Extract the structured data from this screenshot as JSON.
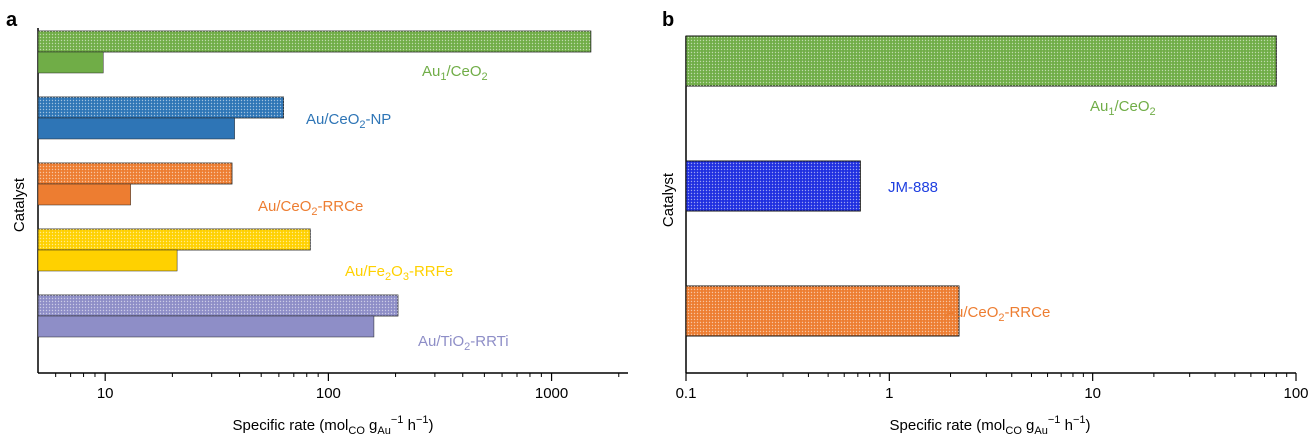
{
  "panels": {
    "a": {
      "letter": "a"
    },
    "b": {
      "letter": "b"
    }
  },
  "chart_data": [
    {
      "type": "bar",
      "orientation": "horizontal",
      "xscale": "log",
      "xlim": [
        5,
        2200
      ],
      "xticks": [
        10,
        100,
        1000
      ],
      "xtick_labels": [
        "10",
        "100",
        "1000"
      ],
      "xlabel": "Specific rate (mol",
      "ylabel": "Catalyst",
      "groups": [
        {
          "label": "Au",
          "sub": "1",
          "mid": "/CeO",
          "sub2": "2",
          "tail": "",
          "color": "#70AD47",
          "textColor": "#70AD47",
          "values": [
            1500,
            9.8
          ]
        },
        {
          "label": "Au/CeO",
          "sub": "2",
          "mid": "-NP",
          "sub2": "",
          "tail": "",
          "color": "#2E75B6",
          "textColor": "#2E75B6",
          "values": [
            63,
            38
          ]
        },
        {
          "label": "Au/CeO",
          "sub": "2",
          "mid": "-RRCe",
          "sub2": "",
          "tail": "",
          "color": "#ED7D31",
          "textColor": "#ED7D31",
          "values": [
            37,
            13
          ]
        },
        {
          "label": "Au/Fe",
          "sub": "2",
          "mid": "O",
          "sub2": "3",
          "tail": "-RRFe",
          "color": "#FFD100",
          "textColor": "#FFD100",
          "values": [
            83,
            21
          ]
        },
        {
          "label": "Au/TiO",
          "sub": "2",
          "mid": "-RRTi",
          "sub2": "",
          "tail": "",
          "color": "#8E8EC7",
          "textColor": "#8E8EC7",
          "values": [
            205,
            160
          ]
        }
      ]
    },
    {
      "type": "bar",
      "orientation": "horizontal",
      "xscale": "log",
      "xlim": [
        0.1,
        100
      ],
      "xticks": [
        0.1,
        1,
        10,
        100
      ],
      "xtick_labels": [
        "0.1",
        "1",
        "10",
        "100"
      ],
      "xlabel": "Specific rate (mol",
      "ylabel": "Catalyst",
      "bars": [
        {
          "label": "Au",
          "sub": "1",
          "mid": "/CeO",
          "sub2": "2",
          "tail": "",
          "color": "#70AD47",
          "textColor": "#70AD47",
          "value": 80
        },
        {
          "label": "JM-888",
          "sub": "",
          "mid": "",
          "sub2": "",
          "tail": "",
          "color": "#1F2FE0",
          "textColor": "#1F3FE0",
          "value": 0.72
        },
        {
          "label": "Au/CeO",
          "sub": "2",
          "mid": "-RRCe",
          "sub2": "",
          "tail": "",
          "color": "#ED7D31",
          "textColor": "#ED7D31",
          "value": 2.2
        }
      ]
    }
  ],
  "axis_units": {
    "co": "CO",
    "g": " g",
    "au": "Au",
    "exp1": "−1",
    "h": " h",
    "exp2": "−1",
    "close": ")"
  }
}
